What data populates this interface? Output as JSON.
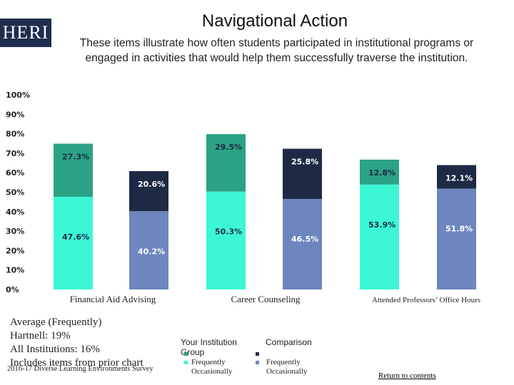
{
  "header": {
    "logo_text": "HERI",
    "title": "Navigational Action",
    "subtitle": "These items illustrate how often students participated in institutional programs or engaged in activities that would help them successfully traverse the institution."
  },
  "chart_data": {
    "type": "bar",
    "stacked": true,
    "ylim": [
      0,
      100
    ],
    "yticks": [
      "0%",
      "10%",
      "20%",
      "30%",
      "40%",
      "50%",
      "60%",
      "70%",
      "80%",
      "90%",
      "100%"
    ],
    "groups": [
      "Financial Aid Advising",
      "Career Counseling",
      "Attended Professors’ Office Hours"
    ],
    "bars": [
      {
        "group": "Financial Aid Advising",
        "entity": "Your Institution",
        "frequently": 47.6,
        "occasionally": 27.3,
        "frequently_label": "47.6%",
        "occasionally_label": "27.3%"
      },
      {
        "group": "Financial Aid Advising",
        "entity": "Comparison Group",
        "frequently": 40.2,
        "occasionally": 20.6,
        "frequently_label": "40.2%",
        "occasionally_label": "20.6%"
      },
      {
        "group": "Career Counseling",
        "entity": "Your Institution",
        "frequently": 50.3,
        "occasionally": 29.5,
        "frequently_label": "50.3%",
        "occasionally_label": "29.5%"
      },
      {
        "group": "Career Counseling",
        "entity": "Comparison Group",
        "frequently": 46.5,
        "occasionally": 25.8,
        "frequently_label": "46.5%",
        "occasionally_label": "25.8%"
      },
      {
        "group": "Attended Professors’ Office Hours",
        "entity": "Your Institution",
        "frequently": 53.9,
        "occasionally": 12.8,
        "frequently_label": "53.9%",
        "occasionally_label": "12.8%"
      },
      {
        "group": "Attended Professors’ Office Hours",
        "entity": "Comparison Group",
        "frequently": 51.8,
        "occasionally": 12.1,
        "frequently_label": "51.8%",
        "occasionally_label": "12.1%"
      }
    ],
    "colors": {
      "inst_frequently": "#3cf7d6",
      "inst_occasionally": "#2ba384",
      "comp_frequently": "#6e86bf",
      "comp_occasionally": "#1e2a45"
    }
  },
  "legend": {
    "institution_head": "Your Institution Group",
    "comparison_head": "Comparison",
    "frequently": "Frequently",
    "occasionally": "Occasionally"
  },
  "average": {
    "heading": "Average (Frequently)",
    "hartnell": "Hartnell: 19%",
    "all_institutions": "All Institutions: 16%",
    "note": "Includes items from prior chart"
  },
  "footer": {
    "source": "2016-17 Diverse Learning Environments Survey",
    "return_link": "Return to contents"
  }
}
